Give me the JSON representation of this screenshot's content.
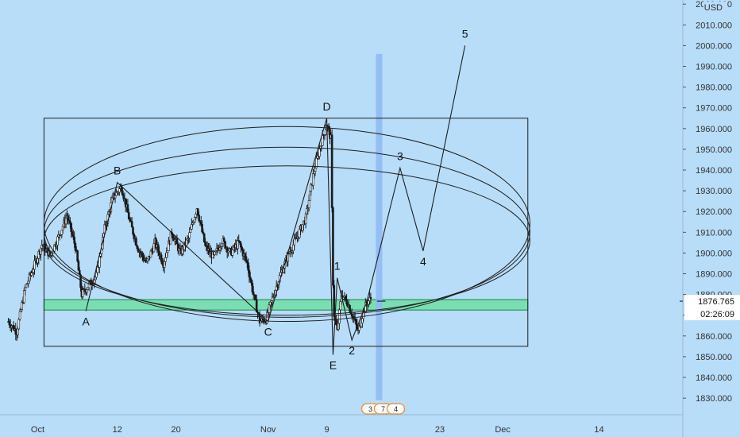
{
  "colors": {
    "background": "#b7ddf9",
    "candle": "#1a1a1a",
    "line": "#1f1f1f",
    "zone_fill": "#66dd99",
    "zone_stroke": "#118844",
    "vline": "#8fb8f5",
    "price_label_bg": "#ffffff",
    "axis_text": "#333333"
  },
  "currency": "USD",
  "current_price": "1876.765",
  "countdown": "02:26:09",
  "event_badges": [
    "3",
    "7",
    "4"
  ],
  "chart_data": {
    "type": "candlestick",
    "y_unit": "USD",
    "ylim": [
      1822,
      2022
    ],
    "yticks": [
      "2020.000",
      "2010.000",
      "2000.000",
      "1990.000",
      "1980.000",
      "1970.000",
      "1960.000",
      "1950.000",
      "1940.000",
      "1930.000",
      "1920.000",
      "1910.000",
      "1900.000",
      "1890.000",
      "1880.000",
      "1870.000",
      "1860.000",
      "1850.000",
      "1840.000",
      "1830.000"
    ],
    "xticks": [
      {
        "label": "Oct",
        "t": 7
      },
      {
        "label": "12",
        "t": 26
      },
      {
        "label": "20",
        "t": 40
      },
      {
        "label": "Nov",
        "t": 62
      },
      {
        "label": "9",
        "t": 76
      },
      {
        "label": "23",
        "t": 103
      },
      {
        "label": "Dec",
        "t": 118
      },
      {
        "label": "14",
        "t": 141
      }
    ],
    "t_range": [
      -2,
      161
    ],
    "path": [
      {
        "t": 0,
        "p": 1867
      },
      {
        "t": 2,
        "p": 1862
      },
      {
        "t": 4,
        "p": 1883
      },
      {
        "t": 6,
        "p": 1893
      },
      {
        "t": 8,
        "p": 1904
      },
      {
        "t": 10,
        "p": 1899
      },
      {
        "t": 12,
        "p": 1908
      },
      {
        "t": 14,
        "p": 1918
      },
      {
        "t": 16,
        "p": 1903
      },
      {
        "t": 17.5,
        "p": 1880
      },
      {
        "t": 19,
        "p": 1884
      },
      {
        "t": 21,
        "p": 1889
      },
      {
        "t": 23,
        "p": 1912
      },
      {
        "t": 25,
        "p": 1927
      },
      {
        "t": 27,
        "p": 1932
      },
      {
        "t": 29,
        "p": 1915
      },
      {
        "t": 31,
        "p": 1902
      },
      {
        "t": 33,
        "p": 1895
      },
      {
        "t": 35,
        "p": 1905
      },
      {
        "t": 37,
        "p": 1895
      },
      {
        "t": 39,
        "p": 1910
      },
      {
        "t": 41,
        "p": 1900
      },
      {
        "t": 43,
        "p": 1907
      },
      {
        "t": 45,
        "p": 1922
      },
      {
        "t": 47,
        "p": 1903
      },
      {
        "t": 49,
        "p": 1898
      },
      {
        "t": 51,
        "p": 1906
      },
      {
        "t": 53,
        "p": 1900
      },
      {
        "t": 55,
        "p": 1905
      },
      {
        "t": 57,
        "p": 1895
      },
      {
        "t": 58.5,
        "p": 1880
      },
      {
        "t": 60,
        "p": 1867
      },
      {
        "t": 61.5,
        "p": 1868
      },
      {
        "t": 63,
        "p": 1878
      },
      {
        "t": 65,
        "p": 1890
      },
      {
        "t": 67,
        "p": 1900
      },
      {
        "t": 69,
        "p": 1908
      },
      {
        "t": 71,
        "p": 1917
      },
      {
        "t": 73,
        "p": 1940
      },
      {
        "t": 74.5,
        "p": 1952
      },
      {
        "t": 76,
        "p": 1962
      },
      {
        "t": 77,
        "p": 1955
      },
      {
        "t": 77.6,
        "p": 1872
      },
      {
        "t": 78.5,
        "p": 1862
      },
      {
        "t": 79.5,
        "p": 1880
      },
      {
        "t": 81,
        "p": 1876
      },
      {
        "t": 82.5,
        "p": 1868
      },
      {
        "t": 83.5,
        "p": 1862
      },
      {
        "t": 84.5,
        "p": 1870
      },
      {
        "t": 85.5,
        "p": 1876
      },
      {
        "t": 86.5,
        "p": 1878
      }
    ],
    "zone": {
      "low": 1872.5,
      "high": 1877.5,
      "t0": 8.5,
      "t1": 124
    },
    "rectangle": {
      "t0": 8.5,
      "t1": 124,
      "p0": 1855,
      "p1": 1965
    },
    "vertical_highlight": {
      "t": 88.5,
      "p_top": 1996,
      "p_bottom": 1829
    },
    "current_tick": {
      "t0": 88,
      "t1": 90,
      "p": 1876.765
    },
    "abcde_path": [
      {
        "label": "A",
        "t": 18.5,
        "p": 1872,
        "label_pos": "below"
      },
      {
        "label": "B",
        "t": 26,
        "p": 1934,
        "label_pos": "above"
      },
      {
        "label": "C",
        "t": 62,
        "p": 1867,
        "label_pos": "below"
      },
      {
        "label": "D",
        "t": 76,
        "p": 1965,
        "label_pos": "above"
      },
      {
        "label": "E",
        "t": 77.5,
        "p": 1851,
        "label_pos": "below"
      }
    ],
    "wave_path": [
      {
        "label": "",
        "t": 77.5,
        "p": 1851
      },
      {
        "label": "1",
        "t": 78.5,
        "p": 1888,
        "label_pos": "above"
      },
      {
        "label": "2",
        "t": 82,
        "p": 1858,
        "label_pos": "below"
      },
      {
        "label": "",
        "t": 85.5,
        "p": 1876
      },
      {
        "label": "3",
        "t": 93.5,
        "p": 1941,
        "label_pos": "above"
      },
      {
        "label": "4",
        "t": 99,
        "p": 1901,
        "label_pos": "below"
      },
      {
        "label": "5",
        "t": 109,
        "p": 2000,
        "label_pos": "above"
      }
    ],
    "ellipses": [
      {
        "t_center": 66.5,
        "p_center": 1914,
        "t_radius": 58,
        "p_radius": 47
      },
      {
        "t_center": 66.5,
        "p_center": 1910,
        "t_radius": 58,
        "p_radius": 41
      },
      {
        "t_center": 66.5,
        "p_center": 1906,
        "t_radius": 58,
        "p_radius": 36
      }
    ]
  }
}
